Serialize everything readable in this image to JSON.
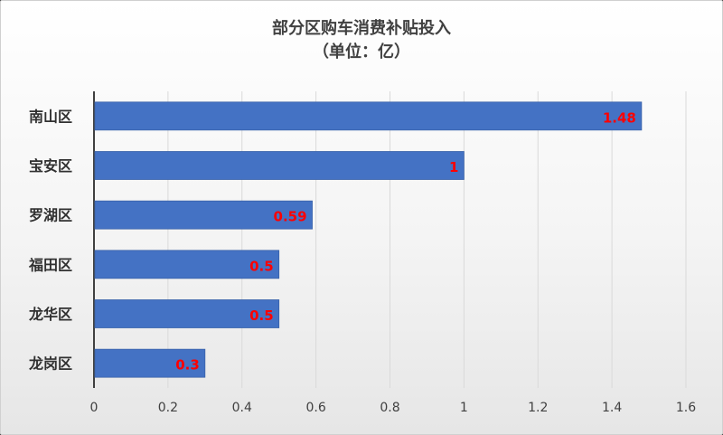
{
  "chart_data": {
    "type": "bar",
    "orientation": "horizontal",
    "title": "部分区购车消费补贴投入",
    "subtitle": "（单位：亿）",
    "categories": [
      "南山区",
      "宝安区",
      "罗湖区",
      "福田区",
      "龙华区",
      "龙岗区"
    ],
    "values": [
      1.48,
      1,
      0.59,
      0.5,
      0.5,
      0.3
    ],
    "data_labels": [
      "1.48",
      "1",
      "0.59",
      "0.5",
      "0.5",
      "0.3"
    ],
    "x_ticks": [
      "0",
      "0.2",
      "0.4",
      "0.6",
      "0.8",
      "1",
      "1.2",
      "1.4",
      "1.6"
    ],
    "xlim": [
      0,
      1.6
    ],
    "grid": true,
    "legend": "none",
    "bar_color": "#4472C4",
    "label_color": "#FF0000"
  }
}
